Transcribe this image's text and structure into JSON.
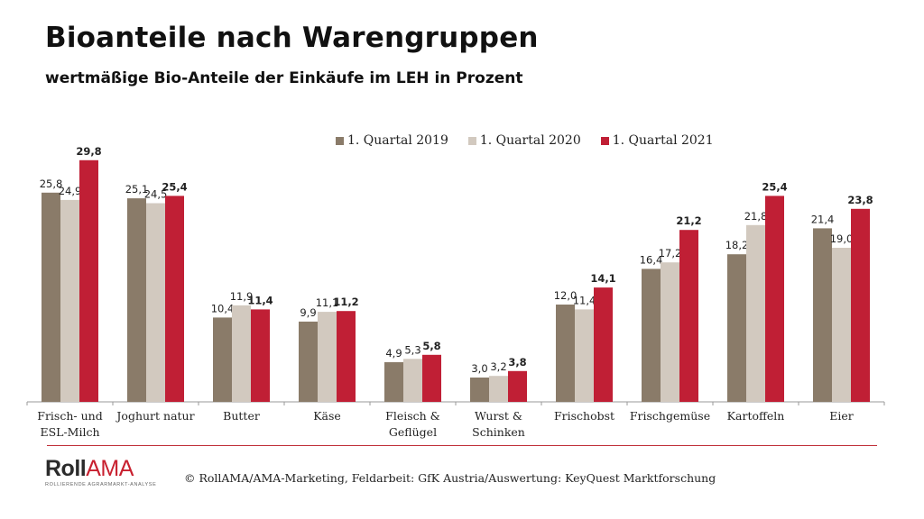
{
  "header": {
    "title": "Bioanteile nach Warengruppen",
    "subtitle": "wertmäßige Bio-Anteile der Einkäufe im LEH in Prozent"
  },
  "colors": {
    "q2019": "#8a7b69",
    "q2020": "#d2c9bf",
    "q2021": "#c01f35",
    "rule": "#c0303a"
  },
  "chart_data": {
    "type": "bar",
    "title": "Bioanteile nach Warengruppen",
    "subtitle": "wertmäßige Bio-Anteile der Einkäufe im LEH in Prozent",
    "xlabel": "",
    "ylabel": "",
    "ylim": [
      0,
      30
    ],
    "grid": false,
    "legend_position": "top-center",
    "categories": [
      [
        "Frisch- und",
        "ESL-Milch"
      ],
      [
        "Joghurt natur"
      ],
      [
        "Butter"
      ],
      [
        "Käse"
      ],
      [
        "Fleisch &",
        "Geflügel"
      ],
      [
        "Wurst &",
        "Schinken"
      ],
      [
        "Frischobst"
      ],
      [
        "Frischgemüse"
      ],
      [
        "Kartoffeln"
      ],
      [
        "Eier"
      ]
    ],
    "series": [
      {
        "name": "1. Quartal 2019",
        "color": "#8a7b69",
        "bold_labels": false,
        "values": [
          25.8,
          25.1,
          10.4,
          9.9,
          4.9,
          3.0,
          12.0,
          16.4,
          18.2,
          21.4
        ],
        "labels": [
          "25,8",
          "25,1",
          "10,4",
          "9,9",
          "4,9",
          "3,0",
          "12,0",
          "16,4",
          "18,2",
          "21,4"
        ]
      },
      {
        "name": "1. Quartal 2020",
        "color": "#d2c9bf",
        "bold_labels": false,
        "values": [
          24.9,
          24.5,
          11.9,
          11.1,
          5.3,
          3.2,
          11.4,
          17.2,
          21.8,
          19.0
        ],
        "labels": [
          "24,9",
          "24,5",
          "11,9",
          "11,1",
          "5,3",
          "3,2",
          "11,4",
          "17,2",
          "21,8",
          "19,0"
        ]
      },
      {
        "name": "1. Quartal 2021",
        "color": "#c01f35",
        "bold_labels": true,
        "values": [
          29.8,
          25.4,
          11.4,
          11.2,
          5.8,
          3.8,
          14.1,
          21.2,
          25.4,
          23.8
        ],
        "labels": [
          "29,8",
          "25,4",
          "11,4",
          "11,2",
          "5,8",
          "3,8",
          "14,1",
          "21,2",
          "25,4",
          "23,8"
        ]
      }
    ]
  },
  "footer": {
    "logo_main_left": "Roll",
    "logo_main_right": "AMA",
    "logo_tagline": "ROLLIERENDE AGRARMARKT-ANALYSE",
    "source": "© RollAMA/AMA-Marketing, Feldarbeit: GfK Austria/Auswertung: KeyQuest Marktforschung"
  }
}
